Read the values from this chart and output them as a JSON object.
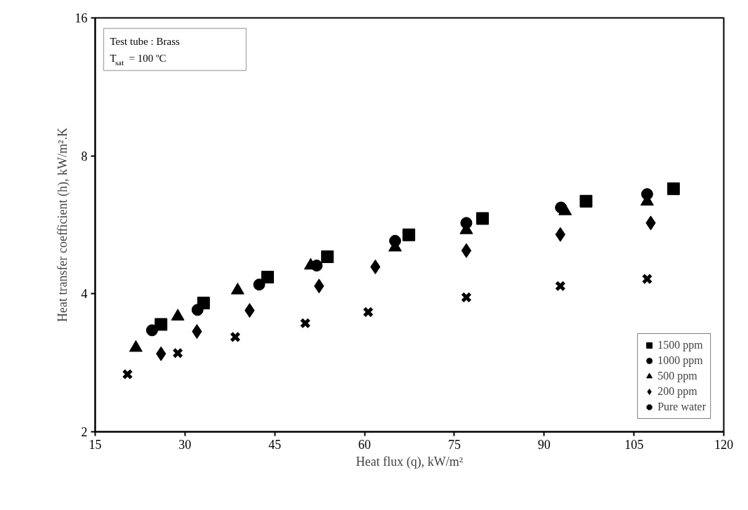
{
  "chart_data": {
    "type": "scatter",
    "xlabel": "Heat flux (q), kW/m²",
    "ylabel": "Heat transfer coefficient (h), kW/m².K",
    "annotations": [
      "Test tube : Brass",
      "T$_{sat}$ = 100 ºC"
    ],
    "log": "y",
    "grid": false,
    "legend": "bottom right",
    "xlim": [
      15,
      120
    ],
    "xticks": [
      15,
      30,
      45,
      60,
      75,
      90,
      105,
      120
    ],
    "ylim": [
      2,
      16
    ],
    "yticks": [
      2,
      4,
      8,
      16
    ],
    "series": [
      {
        "name": "1500 ppm",
        "color": "#000000",
        "marker": "square",
        "x": [
          26.0,
          33.1,
          43.8,
          53.8,
          67.4,
          79.7,
          97.0,
          111.6
        ],
        "values": [
          3.43,
          3.82,
          4.35,
          4.82,
          5.38,
          5.84,
          6.37,
          6.78
        ]
      },
      {
        "name": "1000 ppm",
        "color": "#000000",
        "marker": "circle",
        "x": [
          24.5,
          32.1,
          42.4,
          52.0,
          65.1,
          77.0,
          92.8,
          107.2
        ],
        "values": [
          3.33,
          3.69,
          4.19,
          4.61,
          5.22,
          5.71,
          6.17,
          6.6
        ]
      },
      {
        "name": "500 ppm",
        "color": "#000000",
        "marker": "triangle",
        "x": [
          21.8,
          28.8,
          38.8,
          51.0,
          65.1,
          77.0,
          93.5,
          107.2
        ],
        "values": [
          3.05,
          3.57,
          4.07,
          4.61,
          5.05,
          5.51,
          6.06,
          6.36
        ]
      },
      {
        "name": "200 ppm",
        "color": "#000000",
        "marker": "diamond",
        "x": [
          26.0,
          32.0,
          40.8,
          52.4,
          61.8,
          77.0,
          92.7,
          107.8
        ],
        "values": [
          2.96,
          3.31,
          3.68,
          4.16,
          4.58,
          4.97,
          5.39,
          5.71
        ]
      },
      {
        "name": "Pure water",
        "color": "#000000",
        "marker": "cross",
        "x": [
          20.4,
          28.8,
          38.4,
          50.1,
          60.6,
          77.0,
          92.7,
          107.2
        ],
        "values": [
          2.67,
          2.97,
          3.22,
          3.45,
          3.65,
          3.93,
          4.16,
          4.31
        ]
      }
    ]
  }
}
